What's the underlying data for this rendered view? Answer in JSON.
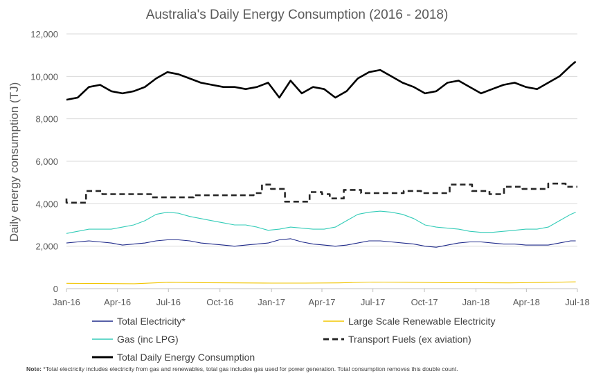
{
  "chart_data": {
    "type": "line",
    "title": "Australia's Daily Energy Consumption (2016 - 2018)",
    "ylabel": "Daily energy consumption (TJ)",
    "xlabel": "",
    "ylim": [
      0,
      12000
    ],
    "y_ticks": [
      "0",
      "2,000",
      "4,000",
      "6,000",
      "8,000",
      "10,000",
      "12,000"
    ],
    "y_tick_values": [
      0,
      2000,
      4000,
      6000,
      8000,
      10000,
      12000
    ],
    "x_range": [
      "2016-01-01",
      "2018-07-01"
    ],
    "x_ticks": [
      {
        "label": "Jan-16",
        "date": "2016-01-01"
      },
      {
        "label": "Apr-16",
        "date": "2016-04-01"
      },
      {
        "label": "Jul-16",
        "date": "2016-07-01"
      },
      {
        "label": "Oct-16",
        "date": "2016-10-01"
      },
      {
        "label": "Jan-17",
        "date": "2017-01-01"
      },
      {
        "label": "Apr-17",
        "date": "2017-04-01"
      },
      {
        "label": "Jul-17",
        "date": "2017-07-01"
      },
      {
        "label": "Oct-17",
        "date": "2017-10-01"
      },
      {
        "label": "Jan-18",
        "date": "2018-01-01"
      },
      {
        "label": "Apr-18",
        "date": "2018-04-01"
      },
      {
        "label": "Jul-18",
        "date": "2018-07-01"
      }
    ],
    "grid": "horizontal",
    "legend_position": "bottom",
    "series": [
      {
        "name": "Total Daily Energy Consumption",
        "color": "#000000",
        "style": "solid",
        "x": [
          "2016-01-01",
          "2016-01-21",
          "2016-02-10",
          "2016-03-01",
          "2016-03-21",
          "2016-04-10",
          "2016-04-30",
          "2016-05-20",
          "2016-06-09",
          "2016-06-29",
          "2016-07-19",
          "2016-08-08",
          "2016-08-28",
          "2016-09-17",
          "2016-10-07",
          "2016-10-27",
          "2016-11-16",
          "2016-12-06",
          "2016-12-26",
          "2017-01-15",
          "2017-02-04",
          "2017-02-24",
          "2017-03-16",
          "2017-04-05",
          "2017-04-25",
          "2017-05-15",
          "2017-06-04",
          "2017-06-24",
          "2017-07-14",
          "2017-08-03",
          "2017-08-23",
          "2017-09-12",
          "2017-10-02",
          "2017-10-22",
          "2017-11-11",
          "2017-12-01",
          "2017-12-21",
          "2018-01-10",
          "2018-01-30",
          "2018-02-19",
          "2018-03-11",
          "2018-03-31",
          "2018-04-20",
          "2018-05-10",
          "2018-05-30",
          "2018-06-19",
          "2018-06-28"
        ],
        "values": [
          8900,
          9000,
          9500,
          9600,
          9300,
          9200,
          9300,
          9500,
          9900,
          10200,
          10100,
          9900,
          9700,
          9600,
          9500,
          9500,
          9400,
          9500,
          9700,
          9000,
          9800,
          9200,
          9500,
          9400,
          9000,
          9300,
          9900,
          10200,
          10300,
          10000,
          9700,
          9500,
          9200,
          9300,
          9700,
          9800,
          9500,
          9200,
          9400,
          9600,
          9700,
          9500,
          9400,
          9700,
          10000,
          10500,
          10700
        ]
      },
      {
        "name": "Transport Fuels (ex aviation)",
        "color": "#262626",
        "style": "dashed",
        "x": [
          "2016-01-01",
          "2016-01-01",
          "2016-01-10",
          "2016-01-10",
          "2016-02-05",
          "2016-02-05",
          "2016-03-05",
          "2016-03-05",
          "2016-05-31",
          "2016-05-31",
          "2016-08-15",
          "2016-08-15",
          "2016-11-30",
          "2016-11-30",
          "2016-12-15",
          "2016-12-15",
          "2016-12-31",
          "2016-12-31",
          "2017-01-05",
          "2017-01-05",
          "2017-01-25",
          "2017-01-25",
          "2017-03-10",
          "2017-03-10",
          "2017-04-01",
          "2017-04-01",
          "2017-04-15",
          "2017-04-15",
          "2017-05-10",
          "2017-05-10",
          "2017-06-10",
          "2017-06-10",
          "2017-08-25",
          "2017-08-25",
          "2017-09-25",
          "2017-09-25",
          "2017-11-15",
          "2017-11-15",
          "2017-12-25",
          "2017-12-25",
          "2018-01-25",
          "2018-01-25",
          "2018-02-20",
          "2018-02-20",
          "2018-03-25",
          "2018-03-25",
          "2018-05-10",
          "2018-05-10",
          "2018-06-10",
          "2018-06-10",
          "2018-07-01"
        ],
        "values": [
          4250,
          4050,
          4050,
          4050,
          4050,
          4600,
          4600,
          4450,
          4450,
          4300,
          4300,
          4400,
          4400,
          4500,
          4500,
          4900,
          4900,
          4700,
          4700,
          4700,
          4700,
          4100,
          4100,
          4550,
          4550,
          4450,
          4450,
          4250,
          4250,
          4650,
          4650,
          4500,
          4500,
          4600,
          4600,
          4500,
          4500,
          4900,
          4900,
          4600,
          4600,
          4450,
          4450,
          4800,
          4800,
          4700,
          4700,
          4950,
          4950,
          4800,
          4800
        ]
      },
      {
        "name": "Gas (inc LPG)",
        "color": "#33ccb8",
        "style": "solid",
        "x": [
          "2016-01-01",
          "2016-01-21",
          "2016-02-10",
          "2016-03-01",
          "2016-03-21",
          "2016-04-10",
          "2016-04-30",
          "2016-05-20",
          "2016-06-09",
          "2016-06-29",
          "2016-07-19",
          "2016-08-08",
          "2016-08-28",
          "2016-09-17",
          "2016-10-07",
          "2016-10-27",
          "2016-11-16",
          "2016-12-06",
          "2016-12-26",
          "2017-01-15",
          "2017-02-04",
          "2017-02-24",
          "2017-03-16",
          "2017-04-05",
          "2017-04-25",
          "2017-05-15",
          "2017-06-04",
          "2017-06-24",
          "2017-07-14",
          "2017-08-03",
          "2017-08-23",
          "2017-09-12",
          "2017-10-02",
          "2017-10-22",
          "2017-11-11",
          "2017-12-01",
          "2017-12-21",
          "2018-01-10",
          "2018-01-30",
          "2018-02-19",
          "2018-03-11",
          "2018-03-31",
          "2018-04-20",
          "2018-05-10",
          "2018-05-30",
          "2018-06-19",
          "2018-06-28"
        ],
        "values": [
          2600,
          2700,
          2800,
          2800,
          2800,
          2900,
          3000,
          3200,
          3500,
          3600,
          3550,
          3400,
          3300,
          3200,
          3100,
          3000,
          3000,
          2900,
          2750,
          2800,
          2900,
          2850,
          2800,
          2800,
          2900,
          3200,
          3500,
          3600,
          3650,
          3600,
          3500,
          3300,
          3000,
          2900,
          2850,
          2800,
          2700,
          2650,
          2650,
          2700,
          2750,
          2800,
          2800,
          2900,
          3200,
          3500,
          3600
        ]
      },
      {
        "name": "Total Electricity*",
        "color": "#1f2a8a",
        "style": "solid",
        "x": [
          "2016-01-01",
          "2016-01-21",
          "2016-02-10",
          "2016-03-01",
          "2016-03-21",
          "2016-04-10",
          "2016-04-30",
          "2016-05-20",
          "2016-06-09",
          "2016-06-29",
          "2016-07-19",
          "2016-08-08",
          "2016-08-28",
          "2016-09-17",
          "2016-10-07",
          "2016-10-27",
          "2016-11-16",
          "2016-12-06",
          "2016-12-26",
          "2017-01-15",
          "2017-02-04",
          "2017-02-24",
          "2017-03-16",
          "2017-04-05",
          "2017-04-25",
          "2017-05-15",
          "2017-06-04",
          "2017-06-24",
          "2017-07-14",
          "2017-08-03",
          "2017-08-23",
          "2017-09-12",
          "2017-10-02",
          "2017-10-22",
          "2017-11-11",
          "2017-12-01",
          "2017-12-21",
          "2018-01-10",
          "2018-01-30",
          "2018-02-19",
          "2018-03-11",
          "2018-03-31",
          "2018-04-20",
          "2018-05-10",
          "2018-05-30",
          "2018-06-19",
          "2018-06-28"
        ],
        "values": [
          2150,
          2200,
          2250,
          2200,
          2150,
          2050,
          2100,
          2150,
          2250,
          2300,
          2300,
          2250,
          2150,
          2100,
          2050,
          2000,
          2050,
          2100,
          2150,
          2300,
          2350,
          2200,
          2100,
          2050,
          2000,
          2050,
          2150,
          2250,
          2250,
          2200,
          2150,
          2100,
          2000,
          1950,
          2050,
          2150,
          2200,
          2200,
          2150,
          2100,
          2100,
          2050,
          2050,
          2050,
          2150,
          2250,
          2250
        ]
      },
      {
        "name": "Large Scale Renewable Electricity",
        "color": "#f2c500",
        "style": "solid",
        "x": [
          "2016-01-01",
          "2016-03-01",
          "2016-05-01",
          "2016-07-01",
          "2016-09-01",
          "2016-11-01",
          "2017-01-01",
          "2017-03-01",
          "2017-05-01",
          "2017-07-01",
          "2017-09-01",
          "2017-11-01",
          "2018-01-01",
          "2018-03-01",
          "2018-05-01",
          "2018-06-28"
        ],
        "values": [
          250,
          240,
          230,
          300,
          280,
          270,
          260,
          260,
          270,
          310,
          300,
          280,
          280,
          270,
          290,
          320
        ]
      }
    ]
  },
  "legend": [
    {
      "name": "Total Electricity*",
      "color": "#1f2a8a",
      "style": "solid"
    },
    {
      "name": "Large Scale Renewable Electricity",
      "color": "#f2c500",
      "style": "solid"
    },
    {
      "name": "Gas (inc LPG)",
      "color": "#33ccb8",
      "style": "solid"
    },
    {
      "name": "Transport Fuels (ex aviation)",
      "color": "#262626",
      "style": "dashed"
    },
    {
      "name": "Total Daily Energy Consumption",
      "color": "#000000",
      "style": "solid-thick"
    }
  ],
  "note": {
    "label": "Note:",
    "text": " *Total electricity includes electricity from gas and renewables, total gas includes gas used for power generation. Total consumption removes this double count."
  },
  "colors": {
    "grid": "#d9d9d9",
    "text": "#595959"
  }
}
